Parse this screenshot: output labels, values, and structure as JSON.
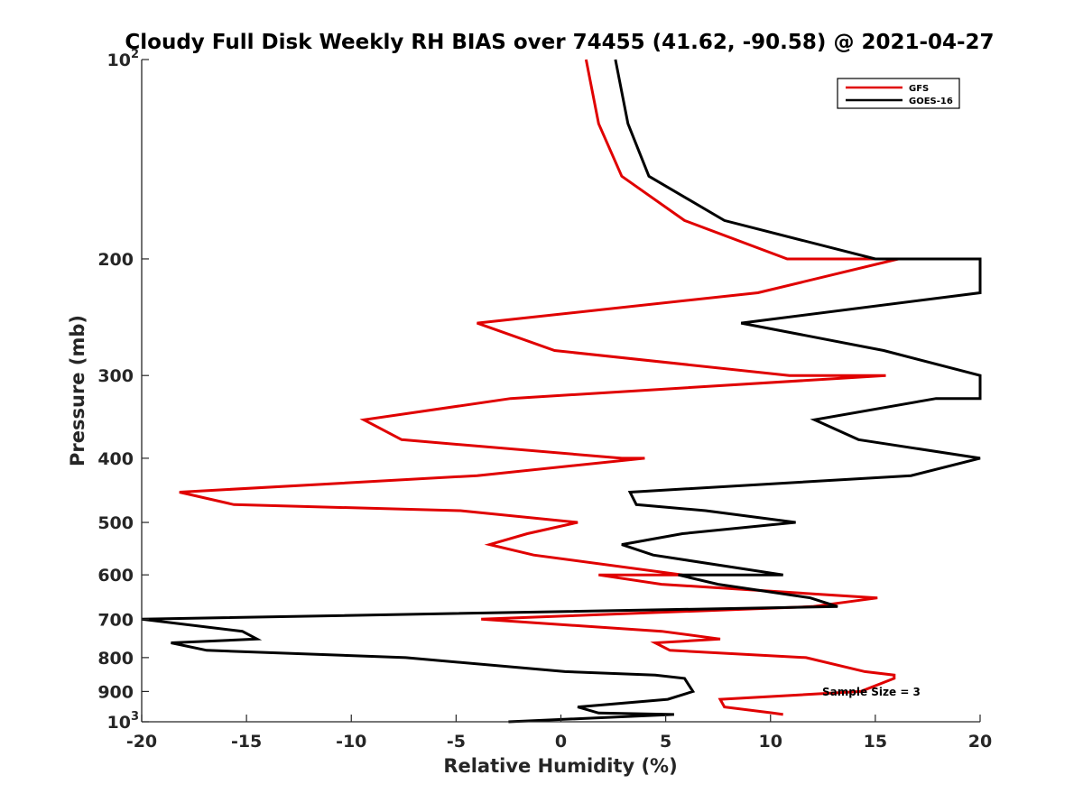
{
  "chart_data": {
    "type": "line",
    "title": "Cloudy Full Disk Weekly RH BIAS over 74455 (41.62, -90.58) @ 2021-04-27",
    "xlabel": "Relative Humidity (%)",
    "ylabel": "Pressure (mb)",
    "xlim": [
      -20,
      20
    ],
    "ylim": [
      100,
      1000
    ],
    "y_scale": "log",
    "y_reversed": true,
    "grid": false,
    "legend_placement": "top-right",
    "x_ticks": [
      -20,
      -15,
      -10,
      -5,
      0,
      5,
      10,
      15,
      20
    ],
    "x_tick_labels": [
      "-20",
      "-15",
      "-10",
      "-5",
      "0",
      "5",
      "10",
      "15",
      "20"
    ],
    "y_ticks": [
      100,
      200,
      300,
      400,
      500,
      600,
      700,
      800,
      900,
      1000
    ],
    "y_tick_labels": [
      "10^2",
      "200",
      "300",
      "400",
      "500",
      "600",
      "700",
      "800",
      "900",
      "10^3"
    ],
    "annotation": "Sample Size = 3",
    "series": [
      {
        "name": "GFS",
        "color": "#e00000",
        "points": [
          [
            1.2,
            100
          ],
          [
            1.8,
            125
          ],
          [
            2.9,
            150
          ],
          [
            5.9,
            175
          ],
          [
            10.8,
            200
          ],
          [
            16.1,
            200
          ],
          [
            9.4,
            225
          ],
          [
            -4.0,
            250
          ],
          [
            -0.3,
            275
          ],
          [
            10.9,
            300
          ],
          [
            15.5,
            300
          ],
          [
            -2.4,
            325
          ],
          [
            -9.4,
            350
          ],
          [
            -7.6,
            375
          ],
          [
            2.9,
            400
          ],
          [
            4.0,
            400
          ],
          [
            -4.0,
            425
          ],
          [
            -18.2,
            450
          ],
          [
            -15.6,
            470
          ],
          [
            -4.8,
            480
          ],
          [
            0.8,
            500
          ],
          [
            -1.6,
            520
          ],
          [
            -3.4,
            540
          ],
          [
            -1.3,
            560
          ],
          [
            5.8,
            600
          ],
          [
            1.8,
            600
          ],
          [
            4.8,
            620
          ],
          [
            15.1,
            650
          ],
          [
            12.0,
            670
          ],
          [
            -3.8,
            700
          ],
          [
            4.8,
            730
          ],
          [
            7.6,
            750
          ],
          [
            4.5,
            760
          ],
          [
            5.2,
            780
          ],
          [
            11.7,
            800
          ],
          [
            14.5,
            840
          ],
          [
            15.9,
            850
          ],
          [
            15.9,
            860
          ],
          [
            14.3,
            900
          ],
          [
            7.6,
            925
          ],
          [
            7.8,
            950
          ],
          [
            10.1,
            970
          ],
          [
            10.6,
            975
          ]
        ]
      },
      {
        "name": "GOES-16",
        "color": "#000000",
        "points": [
          [
            2.6,
            100
          ],
          [
            3.2,
            125
          ],
          [
            4.2,
            150
          ],
          [
            7.8,
            175
          ],
          [
            15.0,
            200
          ],
          [
            20.0,
            200
          ],
          [
            20.0,
            225
          ],
          [
            8.6,
            250
          ],
          [
            15.4,
            275
          ],
          [
            20.0,
            300
          ],
          [
            20.0,
            325
          ],
          [
            17.9,
            325
          ],
          [
            12.1,
            350
          ],
          [
            14.2,
            375
          ],
          [
            20.0,
            400
          ],
          [
            20.0,
            400
          ],
          [
            16.7,
            425
          ],
          [
            3.3,
            450
          ],
          [
            3.6,
            470
          ],
          [
            6.9,
            480
          ],
          [
            11.2,
            500
          ],
          [
            5.8,
            520
          ],
          [
            2.9,
            540
          ],
          [
            4.4,
            560
          ],
          [
            10.6,
            600
          ],
          [
            5.6,
            600
          ],
          [
            7.5,
            620
          ],
          [
            11.9,
            650
          ],
          [
            13.2,
            670
          ],
          [
            -20.0,
            700
          ],
          [
            -15.2,
            730
          ],
          [
            -14.5,
            750
          ],
          [
            -18.6,
            760
          ],
          [
            -16.9,
            780
          ],
          [
            -7.4,
            800
          ],
          [
            0.2,
            840
          ],
          [
            4.5,
            850
          ],
          [
            5.9,
            860
          ],
          [
            6.3,
            900
          ],
          [
            5.1,
            925
          ],
          [
            0.8,
            950
          ],
          [
            1.8,
            970
          ],
          [
            5.4,
            975
          ],
          [
            -2.5,
            1000
          ]
        ]
      }
    ]
  }
}
